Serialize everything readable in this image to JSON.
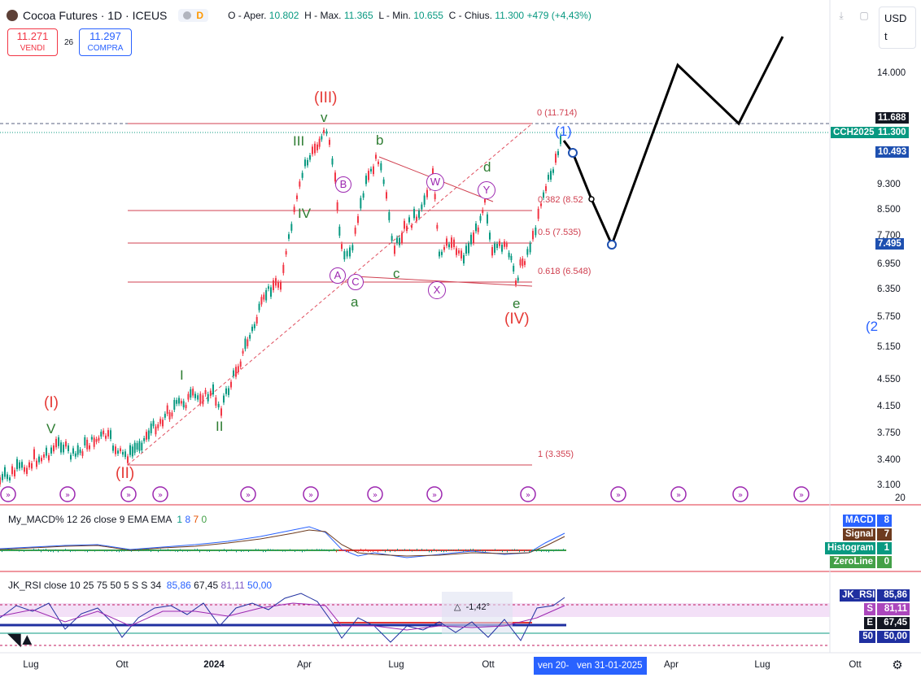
{
  "header": {
    "symbol": "Cocoa Futures · 1D · ICEUS",
    "pill_letter": "D",
    "o_label": "O - Aper.",
    "o_val": "10.802",
    "h_label": "H - Max.",
    "h_val": "11.365",
    "l_label": "L - Min.",
    "l_val": "10.655",
    "c_label": "C - Chius.",
    "c_val": "11.300",
    "change": "+479 (+4,43%)"
  },
  "trade": {
    "sell_price": "11.271",
    "sell_label": "VENDI",
    "spread": "26",
    "buy_price": "11.297",
    "buy_label": "COMPRA"
  },
  "currency": {
    "label": "USD",
    "sub": "t"
  },
  "price_axis": [
    "14.000",
    "9.300",
    "8.500",
    "7.700",
    "6.950",
    "6.350",
    "5.750",
    "5.150",
    "4.550",
    "4.150",
    "3.750",
    "3.400",
    "3.100"
  ],
  "price_tags": {
    "top": "11.688",
    "symbol_name": "CCH2025",
    "symbol_price": "11.300",
    "blue_upper": "10.493",
    "blue_lower": "7.495"
  },
  "fib": {
    "f0": "0 (11.714)",
    "f382": "0.382 (8.52",
    "f05": "0.5 (7.535)",
    "f618": "0.618 (6.548)",
    "f1": "1 (3.355)"
  },
  "waves": {
    "III_big": "(III)",
    "IV_big": "(IV)",
    "I_big": "(I)",
    "II_big": "(II)",
    "v_small": "v",
    "V_small": "V",
    "III": "III",
    "IV": "IV",
    "I": "I",
    "II": "II",
    "b": "b",
    "c": "c",
    "a": "a",
    "d": "d",
    "e": "e",
    "A": "A",
    "B": "B",
    "C": "C",
    "W": "W",
    "X": "X",
    "Y": "Y",
    "one": "(1)",
    "two": "(2"
  },
  "macd": {
    "title": "My_MACD% 12 26 close 9 EMA EMA",
    "v1": "1",
    "v2": "8",
    "v3": "7",
    "v4": "0",
    "tags": [
      {
        "name": "MACD",
        "value": "8",
        "color": "#2962ff"
      },
      {
        "name": "Signal",
        "value": "7",
        "color": "#6d3b1f"
      },
      {
        "name": "Histogram",
        "value": "1",
        "color": "#089981"
      },
      {
        "name": "ZeroLine",
        "value": "0",
        "color": "#43a047"
      }
    ],
    "axis_top": "20"
  },
  "rsi": {
    "title": "JK_RSI close 10 25 75 50 5 S S 34",
    "v1": "85,86",
    "v2": "67,45",
    "v3": "81,11",
    "v4": "50,00",
    "tags": [
      {
        "name": "JK_RSI",
        "value": "85,86",
        "color": "#1f2fa0"
      },
      {
        "name": "S",
        "value": "81,11",
        "color": "#ab47bc"
      },
      {
        "name": "E",
        "value": "67,45",
        "color": "#131722"
      },
      {
        "name": "50",
        "value": "50,00",
        "color": "#1f2fa0"
      }
    ],
    "angle_label": "-1,42°"
  },
  "time_axis": [
    "Lug",
    "Ott",
    "2024",
    "Apr",
    "Lug",
    "Ott",
    "Apr",
    "Lug",
    "Ott"
  ],
  "time_tags": [
    "ven 20-",
    "ven 31-01-2025"
  ],
  "colors": {
    "up": "#089981",
    "down": "#f23645",
    "green_wave": "#2e7d32",
    "red_wave": "#e53935",
    "blue": "#2962ff",
    "purple": "#9c27b0"
  }
}
